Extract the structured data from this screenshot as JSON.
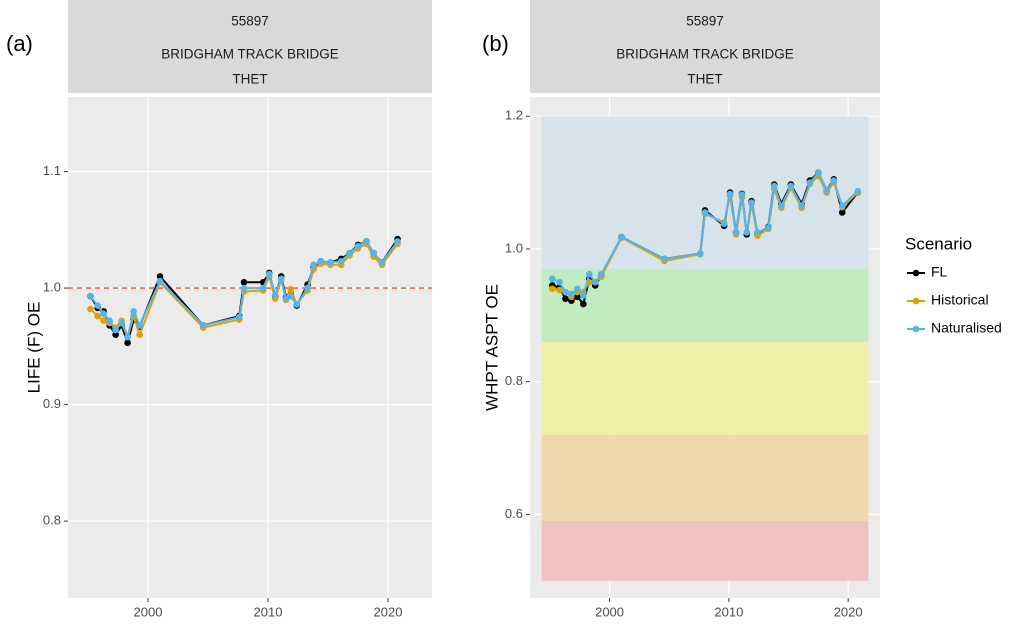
{
  "chart_data": [
    {
      "type": "line",
      "panel_label": "(a)",
      "strip": [
        "55897",
        "BRIDGHAM TRACK BRIDGE",
        "THET"
      ],
      "y_label": "LIFE (F) OE",
      "x": [
        1995.2,
        1995.8,
        1996.3,
        1996.8,
        1997.3,
        1997.8,
        1998.3,
        1998.8,
        1999.3,
        2001.0,
        2004.6,
        2007.6,
        2008.0,
        2009.6,
        2010.1,
        2010.6,
        2011.1,
        2011.5,
        2011.9,
        2012.4,
        2013.3,
        2013.8,
        2014.4,
        2015.2,
        2016.1,
        2016.8,
        2017.5,
        2018.2,
        2018.8,
        2019.5,
        2020.8
      ],
      "series": [
        {
          "name": "FL",
          "color": "#000000",
          "values": [
            0.993,
            0.983,
            0.98,
            0.968,
            0.96,
            0.968,
            0.953,
            0.973,
            0.967,
            1.01,
            0.968,
            0.976,
            1.005,
            1.005,
            1.013,
            0.993,
            1.01,
            0.992,
            0.995,
            0.985,
            1.003,
            1.018,
            1.023,
            1.022,
            1.025,
            1.03,
            1.037,
            1.04,
            1.03,
            1.022,
            1.042
          ]
        },
        {
          "name": "Historical",
          "color": "#e69f00",
          "values": [
            0.982,
            0.976,
            0.972,
            0.97,
            0.966,
            0.972,
            0.958,
            0.976,
            0.96,
            1.005,
            0.966,
            0.973,
            0.997,
            0.998,
            1.01,
            0.991,
            1.007,
            0.99,
            0.999,
            0.986,
            0.998,
            1.016,
            1.021,
            1.02,
            1.02,
            1.028,
            1.034,
            1.038,
            1.027,
            1.02,
            1.038
          ]
        },
        {
          "name": "Naturalised",
          "color": "#56b4e9",
          "values": [
            0.993,
            0.985,
            0.978,
            0.972,
            0.964,
            0.97,
            0.958,
            0.98,
            0.968,
            1.006,
            0.968,
            0.975,
            1.0,
            1.0,
            1.012,
            0.994,
            1.008,
            0.991,
            0.993,
            0.986,
            1.0,
            1.02,
            1.023,
            1.022,
            1.023,
            1.03,
            1.036,
            1.04,
            1.03,
            1.022,
            1.04
          ]
        }
      ],
      "hline": {
        "value": 1,
        "color": "#ee4b3e"
      },
      "xlim": [
        1993.33,
        2023.67
      ],
      "xticks": [
        2000,
        2010,
        2020
      ],
      "ylim": [
        0.734,
        1.164
      ],
      "yticks": [
        0.8,
        0.9,
        {
          "value": 1,
          "label": "1.0"
        },
        1.1
      ],
      "grid": true
    },
    {
      "type": "line",
      "panel_label": "(b)",
      "strip": [
        "55897",
        "BRIDGHAM TRACK BRIDGE",
        "THET"
      ],
      "y_label": "WHPT ASPT OE",
      "x": [
        1995.2,
        1995.8,
        1996.3,
        1996.8,
        1997.3,
        1997.8,
        1998.3,
        1998.8,
        1999.3,
        2001.0,
        2004.6,
        2007.6,
        2008.0,
        2009.6,
        2010.1,
        2010.6,
        2011.1,
        2011.5,
        2011.9,
        2012.4,
        2013.3,
        2013.8,
        2014.4,
        2015.2,
        2016.1,
        2016.8,
        2017.5,
        2018.2,
        2018.8,
        2019.5,
        2020.8
      ],
      "series": [
        {
          "name": "FL",
          "color": "#000000",
          "values": [
            0.945,
            0.942,
            0.925,
            0.922,
            0.928,
            0.917,
            0.955,
            0.945,
            0.96,
            1.018,
            0.985,
            0.993,
            1.058,
            1.035,
            1.085,
            1.025,
            1.083,
            1.022,
            1.072,
            1.023,
            1.033,
            1.097,
            1.068,
            1.097,
            1.068,
            1.103,
            1.115,
            1.088,
            1.105,
            1.055,
            1.085
          ]
        },
        {
          "name": "Historical",
          "color": "#e69f00",
          "values": [
            0.94,
            0.938,
            0.935,
            0.928,
            0.935,
            0.935,
            0.95,
            0.95,
            0.958,
            1.017,
            0.982,
            0.992,
            1.053,
            1.04,
            1.08,
            1.022,
            1.078,
            1.025,
            1.068,
            1.02,
            1.03,
            1.09,
            1.062,
            1.092,
            1.062,
            1.098,
            1.11,
            1.085,
            1.1,
            1.063,
            1.085
          ]
        },
        {
          "name": "Naturalised",
          "color": "#56b4e9",
          "values": [
            0.955,
            0.95,
            0.935,
            0.932,
            0.94,
            0.93,
            0.962,
            0.95,
            0.962,
            1.018,
            0.985,
            0.993,
            1.055,
            1.038,
            1.083,
            1.025,
            1.082,
            1.025,
            1.07,
            1.025,
            1.032,
            1.095,
            1.065,
            1.095,
            1.065,
            1.1,
            1.115,
            1.088,
            1.103,
            1.065,
            1.087
          ]
        }
      ],
      "bands_x": [
        1994.3,
        2021.7
      ],
      "bands": [
        {
          "from": 0.5,
          "to": 0.59,
          "color": "#efbcbc"
        },
        {
          "from": 0.59,
          "to": 0.72,
          "color": "#efd6a6"
        },
        {
          "from": 0.72,
          "to": 0.86,
          "color": "#eff0a0"
        },
        {
          "from": 0.86,
          "to": 0.97,
          "color": "#bdecbc"
        },
        {
          "from": 0.97,
          "to": 1.2,
          "color": "#d5e2ea"
        }
      ],
      "legend": {
        "title": "Scenario",
        "position": "right"
      },
      "xlim": [
        1993.33,
        2022.67
      ],
      "xticks": [
        2000,
        2010,
        2020
      ],
      "ylim": [
        0.474,
        1.229
      ],
      "yticks": [
        0.6,
        0.8,
        {
          "value": 1,
          "label": "1.0"
        },
        1.2
      ],
      "grid": true
    }
  ]
}
